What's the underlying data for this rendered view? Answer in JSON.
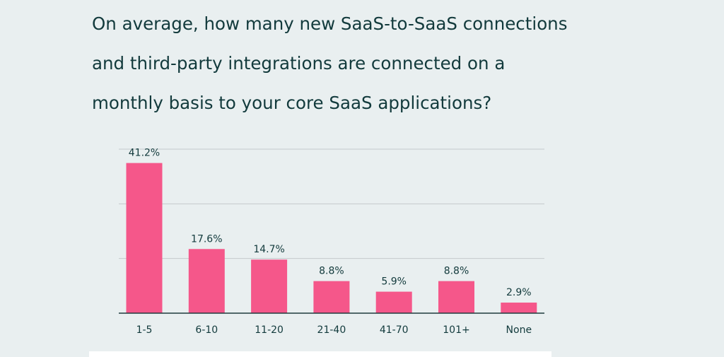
{
  "chart_data": {
    "type": "bar",
    "title_lines": [
      "On average, how many new SaaS-to-SaaS connections",
      "and third-party integrations are connected on a",
      "monthly basis to your core SaaS applications?"
    ],
    "categories": [
      "1-5",
      "6-10",
      "11-20",
      "21-40",
      "41-70",
      "101+",
      "None"
    ],
    "values": [
      41.2,
      17.6,
      14.7,
      8.8,
      5.9,
      8.8,
      2.9
    ],
    "value_labels": [
      "41.2%",
      "17.6%",
      "14.7%",
      "8.8%",
      "5.9%",
      "8.8%",
      "2.9%"
    ],
    "xlabel": "",
    "ylabel": "",
    "ylim": [
      0,
      45
    ],
    "grid": true,
    "legend": "none",
    "bar_color": "#f5578a"
  }
}
